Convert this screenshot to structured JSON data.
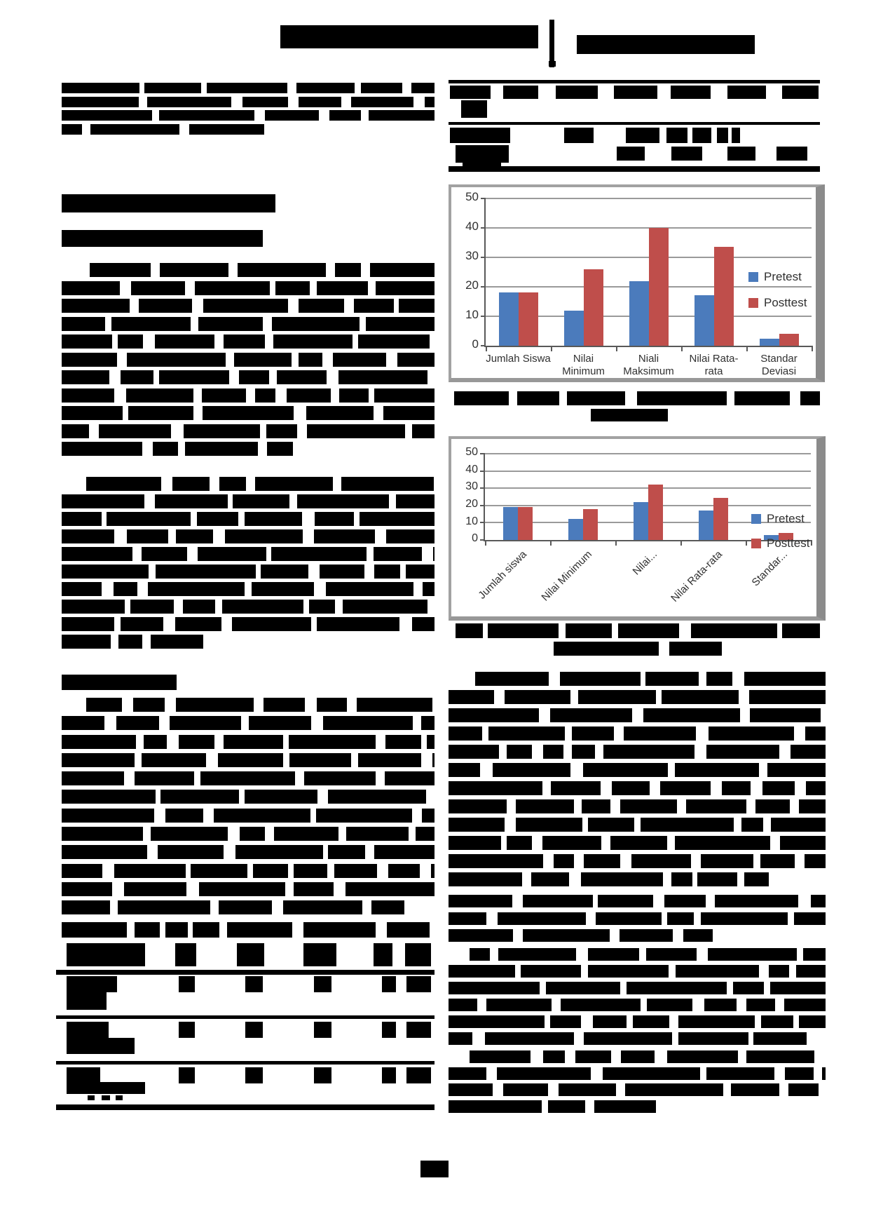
{
  "chart_data": [
    {
      "type": "bar",
      "title": "",
      "categories": [
        "Jumlah Siswa",
        "Nilai Minimum",
        "Niali Maksimum",
        "Nilai Rata-rata",
        "Standar Deviasi"
      ],
      "series": [
        {
          "name": "Pretest",
          "color": "#4b7bbc",
          "values": [
            18,
            12,
            22,
            17.2,
            2.5
          ]
        },
        {
          "name": "Posttest",
          "color": "#bf4e4b",
          "values": [
            18,
            26,
            40,
            33.5,
            4
          ]
        }
      ],
      "ylim": [
        0,
        50
      ],
      "yticks": [
        0,
        10,
        20,
        30,
        40,
        50
      ],
      "grid": true,
      "legend_position": "right",
      "x_label_rotation": 0
    },
    {
      "type": "bar",
      "title": "",
      "categories": [
        "Jumlah siswa",
        "Nilai Minimum",
        "Nilai...",
        "Nilai Rata-rata",
        "Standar..."
      ],
      "series": [
        {
          "name": "Pretest",
          "color": "#4b7bbc",
          "values": [
            19,
            12,
            22,
            17,
            3
          ]
        },
        {
          "name": "Posttest",
          "color": "#bf4e4b",
          "values": [
            19,
            18,
            32,
            24.5,
            4
          ]
        }
      ],
      "ylim": [
        0,
        50
      ],
      "yticks": [
        0,
        10,
        20,
        30,
        40,
        50
      ],
      "grid": true,
      "legend_position": "right",
      "x_label_rotation": -45
    }
  ]
}
